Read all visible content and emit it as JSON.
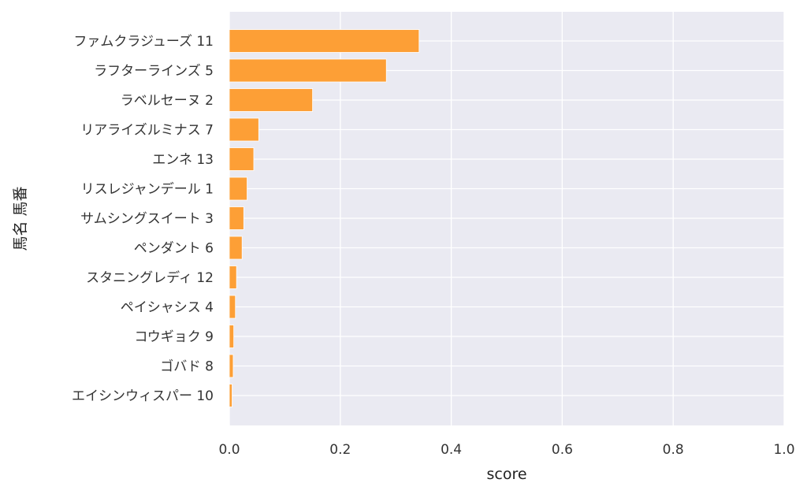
{
  "chart_data": {
    "type": "bar",
    "orientation": "horizontal",
    "categories": [
      "ファムクラジューズ 11",
      "ラフターラインズ 5",
      "ラベルセーヌ 2",
      "リアライズルミナス 7",
      "エンネ 13",
      "リスレジャンデール 1",
      "サムシングスイート 3",
      "ペンダント 6",
      "スタニングレディ 12",
      "ペイシャシス 4",
      "コウギョク 9",
      "ゴバド 8",
      "エイシンウィスパー 10"
    ],
    "values": [
      0.342,
      0.283,
      0.15,
      0.053,
      0.044,
      0.032,
      0.026,
      0.023,
      0.013,
      0.011,
      0.008,
      0.007,
      0.005
    ],
    "xlabel": "score",
    "ylabel": "馬名 馬番",
    "xlim": [
      0,
      1.0
    ],
    "xticks": [
      "0.0",
      "0.2",
      "0.4",
      "0.6",
      "0.8",
      "1.0"
    ],
    "grid": true,
    "colors": {
      "bar": "#fd9f36",
      "bar_edge": "#ffffff",
      "plot_background": "#eaeaf2",
      "grid": "#ffffff"
    }
  }
}
